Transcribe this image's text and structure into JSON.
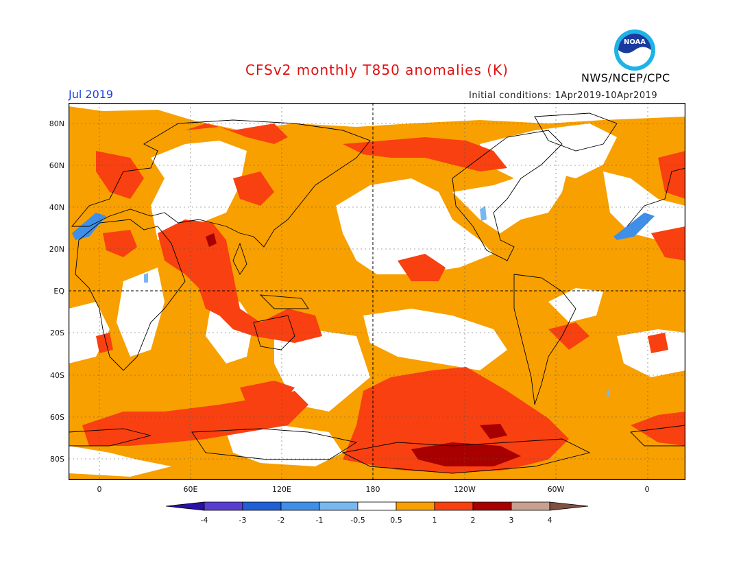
{
  "header": {
    "title": "CFSv2 monthly T850 anomalies (K)",
    "month": "Jul 2019",
    "initial_conditions": "Initial conditions: 1Apr2019-10Apr2019",
    "org": "NWS/NCEP/CPC",
    "logo_text": "NOAA"
  },
  "map": {
    "projection": "cylindrical equidistant, centered on 180",
    "lat_labels": [
      "80N",
      "60N",
      "40N",
      "20N",
      "EQ",
      "20S",
      "40S",
      "60S",
      "80S"
    ],
    "lon_labels": [
      "0",
      "60E",
      "120E",
      "180",
      "120W",
      "60W",
      "0"
    ],
    "colors": {
      "land_outline": "#000000",
      "anomaly_0_5_to_1": "#f8a000",
      "anomaly_1_to_2": "#f84010",
      "anomaly_2_to_3": "#a80000",
      "anomaly_neg_1_to_neg_0_5": "#78b8f0",
      "anomaly_neg_2_to_neg_1": "#3f8fe8"
    }
  },
  "colorbar": {
    "labels": [
      "-4",
      "-3",
      "-2",
      "-1",
      "-0.5",
      "0.5",
      "1",
      "2",
      "3",
      "4"
    ],
    "colors": [
      "#2a0fa8",
      "#5a3ed2",
      "#1e60d8",
      "#3f8fe8",
      "#78b8f0",
      "#ffffff",
      "#f8a000",
      "#f84010",
      "#a80000",
      "#c8a090",
      "#805040"
    ]
  }
}
